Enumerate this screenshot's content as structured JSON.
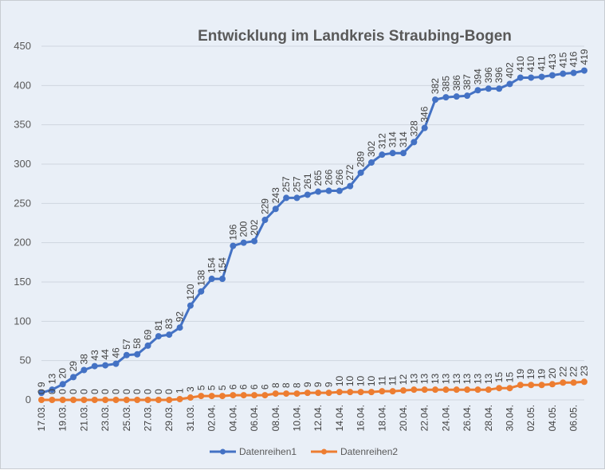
{
  "chart_data": {
    "type": "line",
    "title": "Entwicklung im Landkreis Straubing-Bogen",
    "ylim": [
      0,
      450
    ],
    "yticks": [
      "0",
      "50",
      "100",
      "150",
      "200",
      "250",
      "300",
      "350",
      "400",
      "450"
    ],
    "grid": true,
    "legend_position": "bottom",
    "categories": [
      "17.03.",
      "18.03.",
      "19.03.",
      "20.03.",
      "21.03.",
      "22.03.",
      "23.03.",
      "24.03.",
      "25.03.",
      "26.03.",
      "27.03.",
      "28.03.",
      "29.03.",
      "30.03.",
      "31.03.",
      "01.04.",
      "02.04.",
      "03.04.",
      "04.04.",
      "05.04.",
      "06.04.",
      "07.04.",
      "08.04.",
      "09.04.",
      "10.04.",
      "11.04.",
      "12.04.",
      "13.04.",
      "14.04.",
      "15.04.",
      "16.04.",
      "17.04.",
      "18.04.",
      "19.04.",
      "20.04.",
      "21.04.",
      "22.04.",
      "23.04.",
      "24.04.",
      "25.04.",
      "26.04.",
      "27.04.",
      "28.04.",
      "29.04.",
      "30.04.",
      "01.05.",
      "02.05.",
      "03.05.",
      "04.05.",
      "05.05.",
      "06.05.",
      "07.05."
    ],
    "visible_xtick_labels": [
      "17.03.",
      "19.03.",
      "21.03.",
      "23.03.",
      "25.03.",
      "27.03.",
      "29.03.",
      "31.03.",
      "02.04.",
      "04.04.",
      "06.04.",
      "08.04.",
      "10.04.",
      "12.04.",
      "14.04.",
      "16.04.",
      "18.04.",
      "20.04.",
      "22.04.",
      "24.04.",
      "26.04.",
      "28.04.",
      "30.04.",
      "02.05.",
      "04.05.",
      "06.05."
    ],
    "series": [
      {
        "name": "Datenreihen1",
        "color": "#4472c4",
        "values": [
          9,
          13,
          20,
          29,
          38,
          43,
          44,
          46,
          57,
          58,
          69,
          81,
          83,
          92,
          120,
          138,
          154,
          154,
          196,
          200,
          202,
          229,
          243,
          257,
          257,
          261,
          265,
          266,
          266,
          272,
          289,
          302,
          312,
          314,
          314,
          328,
          346,
          382,
          385,
          386,
          387,
          394,
          396,
          396,
          402,
          410,
          410,
          411,
          413,
          415,
          416,
          419
        ]
      },
      {
        "name": "Datenreihen2",
        "color": "#ed7d31",
        "values": [
          0,
          0,
          0,
          0,
          0,
          0,
          0,
          0,
          0,
          0,
          0,
          0,
          0,
          1,
          3,
          5,
          5,
          5,
          6,
          6,
          6,
          6,
          8,
          8,
          8,
          9,
          9,
          9,
          10,
          10,
          10,
          10,
          11,
          11,
          12,
          13,
          13,
          13,
          13,
          13,
          13,
          13,
          13,
          15,
          15,
          19,
          19,
          19,
          20,
          22,
          22,
          23
        ]
      }
    ]
  }
}
